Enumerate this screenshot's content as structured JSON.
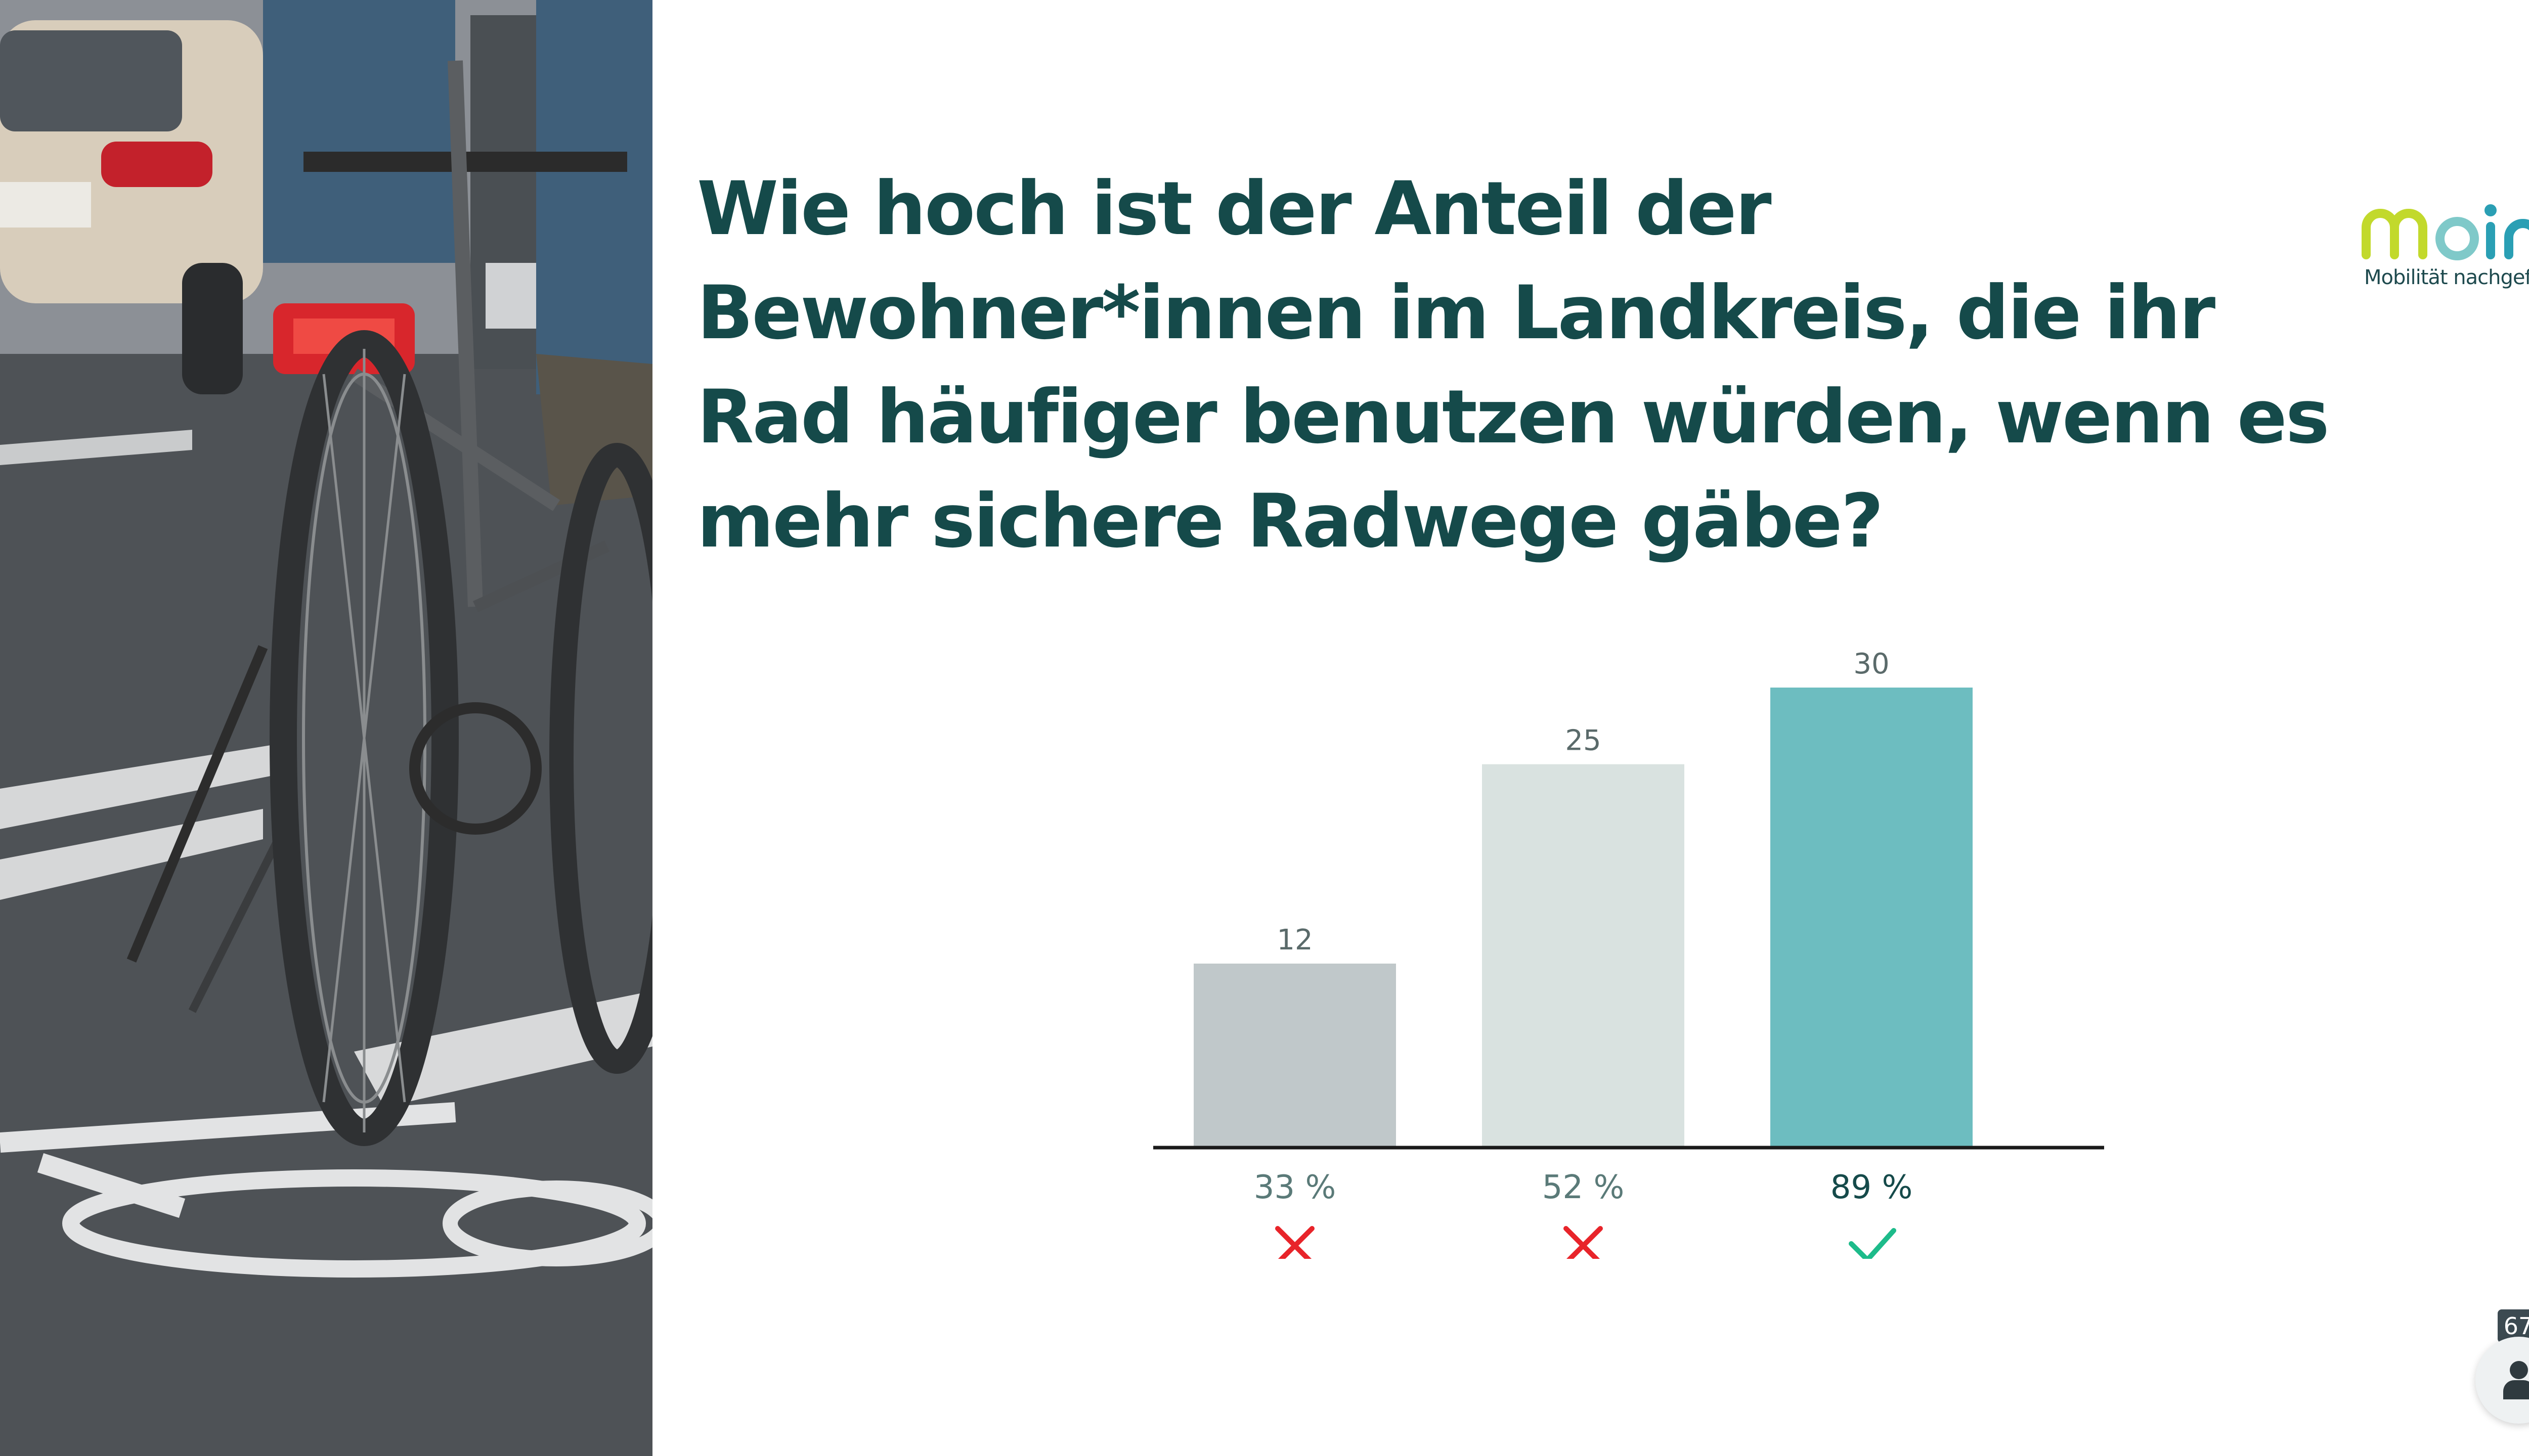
{
  "slide": {
    "question": "Wie hoch ist der Anteil der Bewohner*innen im Landkreis, die ihr Rad häufiger benutzen würden, wenn es mehr sichere Radwege gäbe?",
    "photo_icon": "cyclist-photo"
  },
  "logo": {
    "word": "moin.",
    "tagline": "Mobilität nachgefragt.",
    "colors": {
      "m": "#c2d92c",
      "o": "#7fc9c9",
      "in": "#2a9fb4"
    }
  },
  "chart_data": {
    "type": "bar",
    "categories": [
      "33 %",
      "52 %",
      "89 %"
    ],
    "values": [
      12,
      25,
      30
    ],
    "ylim": [
      0,
      30
    ],
    "colors": [
      "#c0c8ca",
      "#d9e2e0",
      "#6dbdc0"
    ],
    "category_label_colors": [
      "#5a7a78",
      "#5a7a78",
      "#154a4a"
    ],
    "status": [
      "wrong",
      "wrong",
      "correct"
    ],
    "status_icons": [
      "cross-icon",
      "cross-icon",
      "check-icon"
    ],
    "status_colors": {
      "wrong": "#e8242a",
      "correct": "#1dbb8a"
    },
    "value_label_color": "#5a6a6a"
  },
  "participants": {
    "count": "67",
    "icon": "person-icon"
  }
}
